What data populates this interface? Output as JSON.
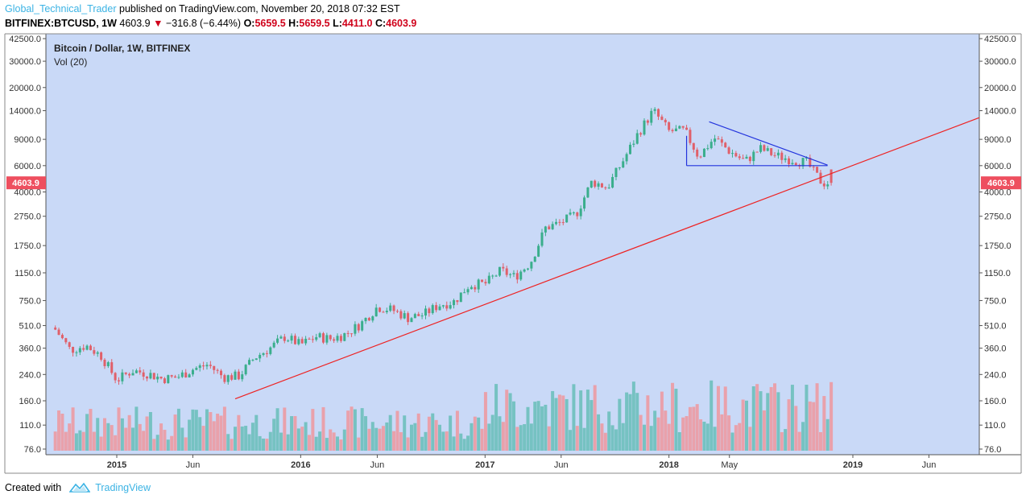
{
  "header": {
    "author": "Global_Technical_Trader",
    "published_text": " published on TradingView.com, November 20, 2018 07:32 EST",
    "symbol": "BITFINEX:BTCUSD, 1W",
    "last": "4603.9",
    "change": "−316.8 (−6.44%)",
    "o_label": "O:",
    "o_val": "5659.5",
    "h_label": "H:",
    "h_val": "5659.5",
    "l_label": "L:",
    "l_val": "4411.0",
    "c_label": "C:",
    "c_val": "4603.9"
  },
  "legend": {
    "title": "Bitcoin / Dollar, 1W, BITFINEX",
    "vol": "Vol (20)"
  },
  "footer": {
    "created": "Created with",
    "brand": "TradingView"
  },
  "colors": {
    "background": "#c9d9f7",
    "up": "#3aae8c",
    "down": "#e0606a",
    "vol_up": "#76c2c2",
    "vol_down": "#e9a1ab",
    "trend": "#ee2222",
    "triangle_top": "#2233dd",
    "triangle_bottom": "#2233dd",
    "price_tag": "#ee4f5f"
  },
  "chart_data": {
    "type": "candlestick",
    "y_scale": "log",
    "ylim": [
      76,
      42500
    ],
    "y_ticks": [
      "42500.0",
      "30000.0",
      "20000.0",
      "14000.0",
      "9000.0",
      "6000.0",
      "4000.0",
      "2750.0",
      "1750.0",
      "1150.0",
      "750.0",
      "510.0",
      "360.0",
      "240.0",
      "160.0",
      "110.0",
      "76.0"
    ],
    "x_ticks": [
      "2015",
      "Jun",
      "2016",
      "Jun",
      "2017",
      "Jun",
      "2018",
      "May",
      "2019",
      "Jun"
    ],
    "last_price_label": "4603.9",
    "close_series": [
      {
        "date": "2014-09",
        "close": 480
      },
      {
        "date": "2014-10",
        "close": 350
      },
      {
        "date": "2014-11",
        "close": 375
      },
      {
        "date": "2014-12",
        "close": 320
      },
      {
        "date": "2015-01",
        "close": 220
      },
      {
        "date": "2015-02",
        "close": 255
      },
      {
        "date": "2015-03",
        "close": 245
      },
      {
        "date": "2015-04",
        "close": 225
      },
      {
        "date": "2015-05",
        "close": 230
      },
      {
        "date": "2015-06",
        "close": 260
      },
      {
        "date": "2015-07",
        "close": 280
      },
      {
        "date": "2015-08",
        "close": 230
      },
      {
        "date": "2015-09",
        "close": 235
      },
      {
        "date": "2015-10",
        "close": 310
      },
      {
        "date": "2015-11",
        "close": 360
      },
      {
        "date": "2015-12",
        "close": 430
      },
      {
        "date": "2016-01",
        "close": 380
      },
      {
        "date": "2016-02",
        "close": 430
      },
      {
        "date": "2016-03",
        "close": 415
      },
      {
        "date": "2016-04",
        "close": 450
      },
      {
        "date": "2016-05",
        "close": 530
      },
      {
        "date": "2016-06",
        "close": 680
      },
      {
        "date": "2016-07",
        "close": 650
      },
      {
        "date": "2016-08",
        "close": 575
      },
      {
        "date": "2016-09",
        "close": 605
      },
      {
        "date": "2016-10",
        "close": 700
      },
      {
        "date": "2016-11",
        "close": 740
      },
      {
        "date": "2016-12",
        "close": 960
      },
      {
        "date": "2017-01",
        "close": 970
      },
      {
        "date": "2017-02",
        "close": 1190
      },
      {
        "date": "2017-03",
        "close": 1080
      },
      {
        "date": "2017-04",
        "close": 1350
      },
      {
        "date": "2017-05",
        "close": 2300
      },
      {
        "date": "2017-06",
        "close": 2500
      },
      {
        "date": "2017-07",
        "close": 2850
      },
      {
        "date": "2017-08",
        "close": 4700
      },
      {
        "date": "2017-09",
        "close": 4300
      },
      {
        "date": "2017-10",
        "close": 6400
      },
      {
        "date": "2017-11",
        "close": 9900
      },
      {
        "date": "2017-12",
        "close": 14000
      },
      {
        "date": "2018-01",
        "close": 10200
      },
      {
        "date": "2018-02",
        "close": 10300
      },
      {
        "date": "2018-03",
        "close": 6900
      },
      {
        "date": "2018-04",
        "close": 9200
      },
      {
        "date": "2018-05",
        "close": 7500
      },
      {
        "date": "2018-06",
        "close": 6400
      },
      {
        "date": "2018-07",
        "close": 7800
      },
      {
        "date": "2018-08",
        "close": 7000
      },
      {
        "date": "2018-09",
        "close": 6600
      },
      {
        "date": "2018-10",
        "close": 6300
      },
      {
        "date": "2018-11",
        "close": 4603.9
      }
    ]
  }
}
